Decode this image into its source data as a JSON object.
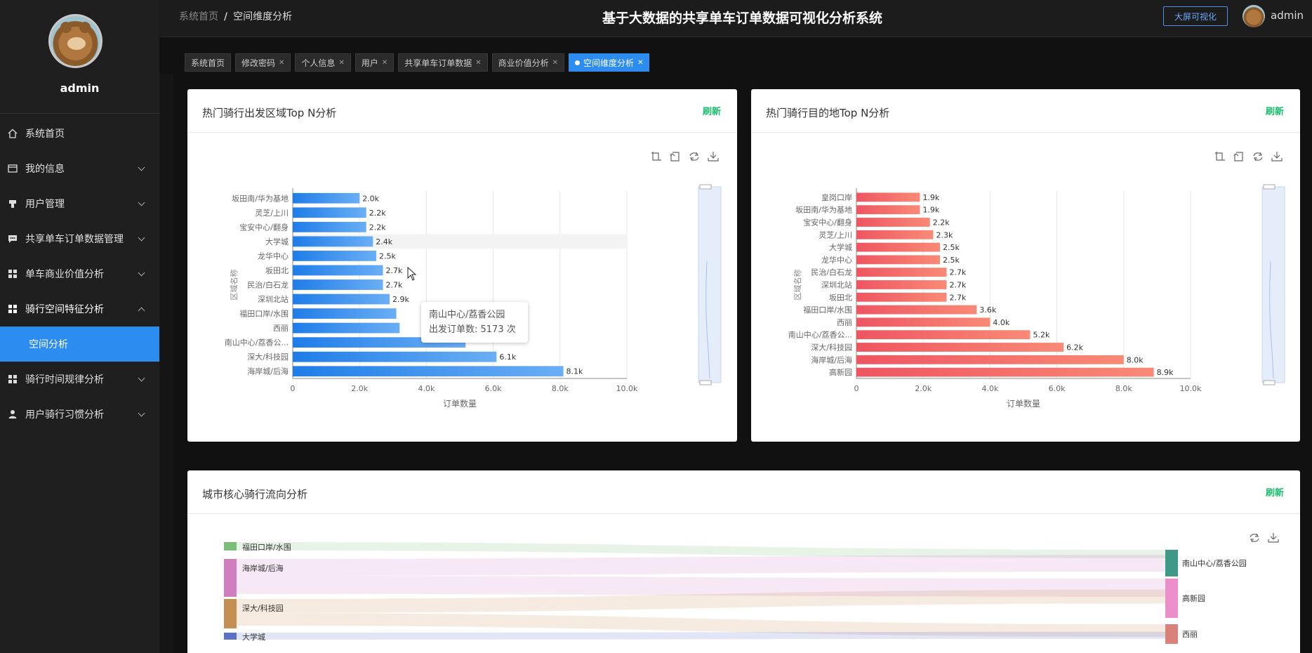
{
  "sidebar": {
    "username": "admin",
    "items": [
      {
        "label": "系统首页",
        "icon": "home-icon"
      },
      {
        "label": "我的信息",
        "icon": "profile-icon"
      },
      {
        "label": "用户管理",
        "icon": "users-icon"
      },
      {
        "label": "共享单车订单数据管理",
        "icon": "chat-icon"
      },
      {
        "label": "单车商业价值分析",
        "icon": "grid-icon"
      },
      {
        "label": "骑行空间特征分析",
        "icon": "grid-icon"
      },
      {
        "label": "骑行时间规律分析",
        "icon": "grid-icon"
      },
      {
        "label": "用户骑行习惯分析",
        "icon": "person-icon"
      }
    ],
    "active_sub": "空间分析"
  },
  "header": {
    "breadcrumb_home": "系统首页",
    "breadcrumb_sep": "/",
    "breadcrumb_current": "空间维度分析",
    "title": "基于大数据的共享单车订单数据可视化分析系统",
    "bigscreen_button": "大屏可视化",
    "user": "admin"
  },
  "tabs": [
    {
      "label": "系统首页",
      "closable": false,
      "active": false
    },
    {
      "label": "修改密码",
      "closable": true,
      "active": false
    },
    {
      "label": "个人信息",
      "closable": true,
      "active": false
    },
    {
      "label": "用户",
      "closable": true,
      "active": false
    },
    {
      "label": "共享单车订单数据",
      "closable": true,
      "active": false
    },
    {
      "label": "商业价值分析",
      "closable": true,
      "active": false
    },
    {
      "label": "空间维度分析",
      "closable": true,
      "active": true
    }
  ],
  "cards": {
    "start": {
      "title": "热门骑行出发区域Top N分析",
      "refresh": "刷新"
    },
    "dest": {
      "title": "热门骑行目的地Top N分析",
      "refresh": "刷新"
    },
    "flow": {
      "title": "城市核心骑行流向分析",
      "refresh": "刷新"
    }
  },
  "tooltip": {
    "name": "南山中心/荔香公园",
    "line": "出发订单数: 5173 次"
  },
  "chart_data": [
    {
      "type": "bar",
      "orientation": "horizontal",
      "title": "热门骑行出发区域Top N分析",
      "xlabel": "订单数量",
      "ylabel": "区域名称",
      "xlim": [
        0,
        10000
      ],
      "xticks": [
        "0",
        "2.0k",
        "4.0k",
        "6.0k",
        "8.0k",
        "10.0k"
      ],
      "categories": [
        "坂田南/华为基地",
        "灵芝/上川",
        "宝安中心/翻身",
        "大学城",
        "龙华中心",
        "坂田北",
        "民治/白石龙",
        "深圳北站",
        "福田口岸/水围",
        "西丽",
        "南山中心/荔香公园",
        "深大/科技园",
        "海岸城/后海"
      ],
      "tick_labels": [
        "坂田南/华为基地",
        "灵芝/上川",
        "宝安中心/翻身",
        "大学城",
        "龙华中心",
        "坂田北",
        "民治/白石龙",
        "深圳北站",
        "福田口岸/水围",
        "西丽",
        "南山中心/荔香公...",
        "深大/科技园",
        "海岸城/后海"
      ],
      "values": [
        2000,
        2200,
        2200,
        2400,
        2500,
        2700,
        2700,
        2900,
        3100,
        3200,
        5173,
        6100,
        8100
      ],
      "labels": [
        "2.0k",
        "2.2k",
        "2.2k",
        "2.4k",
        "2.5k",
        "2.7k",
        "2.7k",
        "2.9k",
        "",
        "",
        "",
        "6.1k",
        "8.1k"
      ],
      "color": "#2d8cf0",
      "highlight_index": 3
    },
    {
      "type": "bar",
      "orientation": "horizontal",
      "title": "热门骑行目的地Top N分析",
      "xlabel": "订单数量",
      "ylabel": "区域名称",
      "xlim": [
        0,
        10000
      ],
      "xticks": [
        "0",
        "2.0k",
        "4.0k",
        "6.0k",
        "8.0k",
        "10.0k"
      ],
      "categories": [
        "皇岗口岸",
        "坂田南/华为基地",
        "宝安中心/翻身",
        "灵芝/上川",
        "大学城",
        "龙华中心",
        "民治/白石龙",
        "深圳北站",
        "坂田北",
        "福田口岸/水围",
        "西丽",
        "南山中心/荔香公园",
        "深大/科技园",
        "海岸城/后海",
        "高新园"
      ],
      "tick_labels": [
        "皇岗口岸",
        "坂田南/华为基地",
        "宝安中心/翻身",
        "灵芝/上川",
        "大学城",
        "龙华中心",
        "民治/白石龙",
        "深圳北站",
        "坂田北",
        "福田口岸/水围",
        "西丽",
        "南山中心/荔香公...",
        "深大/科技园",
        "海岸城/后海",
        "高新园"
      ],
      "values": [
        1900,
        1900,
        2200,
        2300,
        2500,
        2500,
        2700,
        2700,
        2700,
        3600,
        4000,
        5200,
        6200,
        8000,
        8900
      ],
      "labels": [
        "1.9k",
        "1.9k",
        "2.2k",
        "2.3k",
        "2.5k",
        "2.5k",
        "2.7k",
        "2.7k",
        "2.7k",
        "3.6k",
        "4.0k",
        "5.2k",
        "6.2k",
        "8.0k",
        "8.9k"
      ],
      "color": "#f05a5a"
    },
    {
      "type": "sankey",
      "title": "城市核心骑行流向分析",
      "sources": [
        {
          "name": "福田口岸/水围",
          "color": "#7cbd7a"
        },
        {
          "name": "海岸城/后海",
          "color": "#cf7fc0"
        },
        {
          "name": "深大/科技园",
          "color": "#c58f52"
        },
        {
          "name": "大学城",
          "color": "#5b71c8"
        }
      ],
      "targets": [
        {
          "name": "南山中心/荔香公园",
          "color": "#3e9a86"
        },
        {
          "name": "高新园",
          "color": "#ea8fc9"
        },
        {
          "name": "西丽",
          "color": "#d9827a"
        }
      ]
    }
  ]
}
